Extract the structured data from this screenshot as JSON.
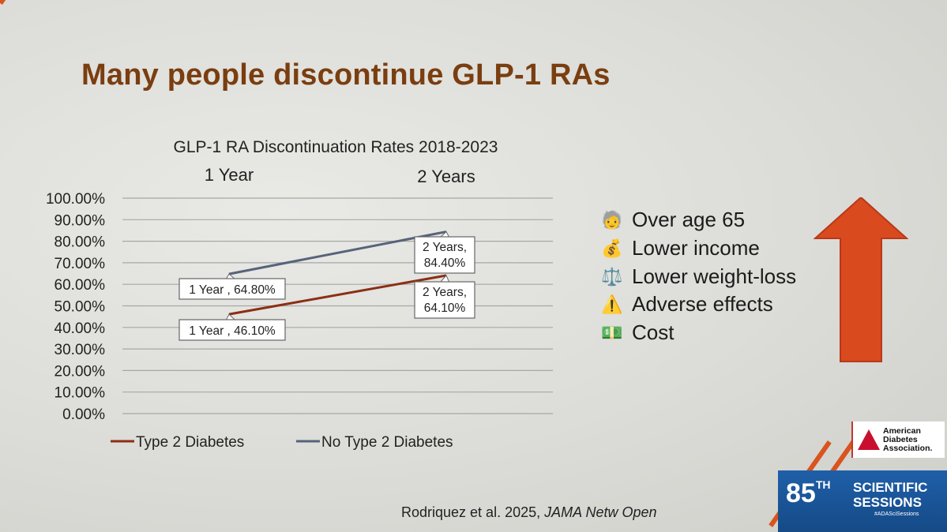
{
  "slide": {
    "title": "Many people discontinue GLP-1 RAs",
    "citation_authors": "Rodriquez et al. 2025, ",
    "citation_journal": "JAMA Netw Open"
  },
  "reasons": [
    {
      "icon": "older-person-icon",
      "glyph": "🧓",
      "label": "Over age 65"
    },
    {
      "icon": "money-bag-icon",
      "glyph": "💰",
      "label": "Lower income"
    },
    {
      "icon": "balance-scale-icon",
      "glyph": "⚖️",
      "label": "Lower weight-loss"
    },
    {
      "icon": "warning-icon",
      "glyph": "⚠️",
      "label": "Adverse effects"
    },
    {
      "icon": "dollar-bill-icon",
      "glyph": "💵",
      "label": "Cost"
    }
  ],
  "branding": {
    "org_line1": "American",
    "org_line2": "Diabetes",
    "org_line3": "Association.",
    "session_number": "85",
    "session_suffix": "TH",
    "session_line1": "SCIENTIFIC",
    "session_line2": "SESSIONS",
    "hashtag": "#ADASciSessions"
  },
  "colors": {
    "title": "#7a3e10",
    "accent_orange": "#d9541e",
    "arrow_red": "#d94a1e",
    "series_t2d": "#8b2f14",
    "series_no_t2d": "#56637a"
  },
  "chart_data": {
    "type": "line",
    "title": "GLP-1 RA Discontinuation Rates 2018-2023",
    "categories": [
      "1 Year",
      "2 Years"
    ],
    "ylim": [
      0,
      100
    ],
    "yticks": [
      "100.00%",
      "90.00%",
      "80.00%",
      "70.00%",
      "60.00%",
      "50.00%",
      "40.00%",
      "30.00%",
      "20.00%",
      "10.00%",
      "0.00%"
    ],
    "ytick_values": [
      100,
      90,
      80,
      70,
      60,
      50,
      40,
      30,
      20,
      10,
      0
    ],
    "grid": true,
    "legend_position": "bottom",
    "series": [
      {
        "name": "Type 2 Diabetes",
        "values": [
          46.1,
          64.1
        ],
        "labels": [
          [
            "1 Year , 46.10%"
          ],
          [
            "2 Years,",
            "64.10%"
          ]
        ]
      },
      {
        "name": "No Type 2 Diabetes",
        "values": [
          64.8,
          84.4
        ],
        "labels": [
          [
            "1 Year , 64.80%"
          ],
          [
            "2 Years,",
            "84.40%"
          ]
        ]
      }
    ]
  }
}
